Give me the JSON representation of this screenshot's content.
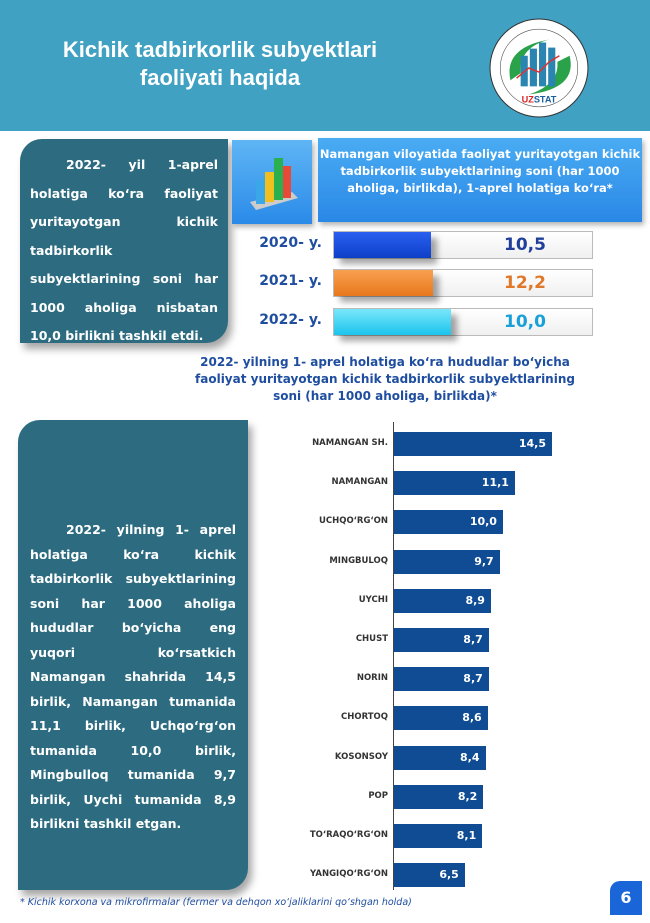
{
  "header": {
    "title_line1": "Kichik tadbirkorlik subyektlari",
    "title_line2": "faoliyati haqida",
    "logo_text_top": "NAMANGAN VILOYATI",
    "logo_text_bottom": "STATISTIKA BOSHQARMASI",
    "logo_brand_uz": "UZ",
    "logo_brand_stat": "STAT"
  },
  "box1": {
    "text": "2022- yil 1-aprel holatiga ko‘ra faoliyat yuritayotgan kichik tadbirkorlik subyektlarining soni har 1000 aholiga nisbatan 10,0 birlikni tashkil etdi."
  },
  "top_panel": {
    "title": "Namangan viloyatida faoliyat yuritayotgan kichik tadbirkorlik subyektlarining soni (har 1000 aholiga, birlikda), 1-aprel  holatiga ko‘ra*"
  },
  "years": [
    {
      "label": "2020- y.",
      "value": "10,5",
      "num": 10.5,
      "color": "#1449d8",
      "text_color": "#1f3f9a"
    },
    {
      "label": "2021- y.",
      "value": "12,2",
      "num": 12.2,
      "color": "#f08a2c",
      "text_color": "#e0782a"
    },
    {
      "label": "2022- y.",
      "value": "10,0",
      "num": 10.0,
      "color": "#2fd0f2",
      "text_color": "#1aa0d8"
    }
  ],
  "subtitle": "2022- yilning 1- aprel holatiga  ko‘ra  hududlar bo‘yicha faoliyat yuritayotgan kichik tadbirkorlik subyektlarining soni (har 1000 aholiga, birlikda)*",
  "box2": {
    "text": "2022- yilning 1- aprel holatiga ko‘ra kichik tadbirkorlik subyektlarining soni har 1000 aholiga hududlar bo‘yicha eng yuqori ko‘rsatkich Namangan shahrida 14,5 birlik, Namangan tumanida 11,1 birlik, Uchqo‘rg‘on tumanida 10,0 birlik, Mingbulloq tumanida 9,7 birlik, Uychi tumanida 8,9 birlikni tashkil etgan."
  },
  "chart_data": {
    "type": "bar",
    "orientation": "horizontal",
    "categories": [
      "NAMANGAN SH.",
      "NAMANGAN",
      "UCHQO‘RG‘ON",
      "MINGBULOQ",
      "UYCHI",
      "CHUST",
      "NORIN",
      "CHORTOQ",
      "KOSONSOY",
      "POP",
      "TO‘RAQO‘RG‘ON",
      "YANGIQO‘RG‘ON"
    ],
    "values": [
      14.5,
      11.1,
      10.0,
      9.7,
      8.9,
      8.7,
      8.7,
      8.6,
      8.4,
      8.2,
      8.1,
      6.5
    ],
    "labels": [
      "14,5",
      "11,1",
      "10,0",
      "9,7",
      "8,9",
      "8,7",
      "8,7",
      "8,6",
      "8,4",
      "8,2",
      "8,1",
      "6,5"
    ],
    "xlim": [
      0,
      15.5
    ],
    "color": "#0f4c94"
  },
  "footnote": "*  Kichik korxona va mikrofirmalar (fermer va dehqon xo‘jaliklarini qo‘shgan holda)",
  "page_number": "6"
}
